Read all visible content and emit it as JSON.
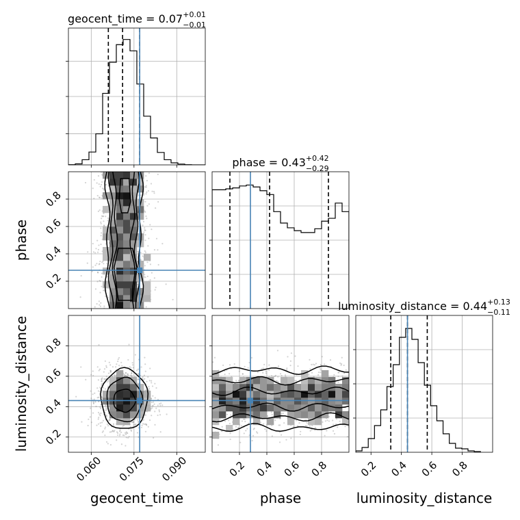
{
  "chart_data": {
    "type": "corner",
    "parameters": [
      {
        "key": "geocent_time",
        "axis_label": "geocent_time",
        "title_main": "geocent_time = 0.07",
        "title_sup": "+0.01",
        "title_sub": "−0.01",
        "range": [
          0.052,
          0.1
        ],
        "ticks": [
          0.06,
          0.075,
          0.09
        ],
        "tick_labels": [
          "0.060",
          "0.075",
          "0.090"
        ],
        "quantiles": [
          0.066,
          0.071,
          0.077
        ],
        "truth": 0.077
      },
      {
        "key": "phase",
        "axis_label": "phase",
        "title_main": "phase = 0.43",
        "title_sup": "+0.42",
        "title_sub": "−0.29",
        "range": [
          0.0,
          1.0
        ],
        "ticks": [
          0.2,
          0.4,
          0.6,
          0.8
        ],
        "tick_labels": [
          "0.2",
          "0.4",
          "0.6",
          "0.8"
        ],
        "quantiles": [
          0.13,
          0.42,
          0.85
        ],
        "truth": 0.28
      },
      {
        "key": "luminosity_distance",
        "axis_label": "luminosity_distance",
        "title_main": "luminosity_distance = 0.44",
        "title_sup": "+0.13",
        "title_sub": "−0.11",
        "range": [
          0.1,
          1.0
        ],
        "ticks": [
          0.2,
          0.4,
          0.6,
          0.8
        ],
        "tick_labels": [
          "0.2",
          "0.4",
          "0.6",
          "0.8"
        ],
        "quantiles": [
          0.33,
          0.44,
          0.57
        ],
        "truth": 0.44
      }
    ],
    "histograms": [
      {
        "param": "geocent_time",
        "edges": [
          0.052,
          0.0544,
          0.0568,
          0.0592,
          0.0616,
          0.064,
          0.0664,
          0.0688,
          0.0712,
          0.0736,
          0.076,
          0.0784,
          0.0808,
          0.0832,
          0.0856,
          0.088,
          0.0904,
          0.0928,
          0.0952,
          0.0976,
          0.1
        ],
        "counts": [
          0.1,
          0.5,
          2.5,
          6.2,
          15.0,
          34.5,
          49.5,
          58.0,
          60.5,
          55.0,
          39.0,
          23.5,
          13.0,
          6.0,
          2.5,
          1.0,
          0.4,
          0.1,
          0,
          0
        ],
        "ylim": [
          0,
          66
        ],
        "ticks": [
          15,
          33,
          50
        ]
      },
      {
        "param": "phase",
        "edges": [
          0.0,
          0.05,
          0.1,
          0.15,
          0.2,
          0.25,
          0.3,
          0.35,
          0.4,
          0.45,
          0.5,
          0.55,
          0.6,
          0.65,
          0.7,
          0.75,
          0.8,
          0.85,
          0.9,
          0.95,
          1.0
        ],
        "counts": [
          62.5,
          62.5,
          63.0,
          63.5,
          64.5,
          65.0,
          64.0,
          62.0,
          60.0,
          51.0,
          45.0,
          42.5,
          41.0,
          40.0,
          40.0,
          42.0,
          46.0,
          47.5,
          55.5,
          51.0
        ],
        "ylim": [
          0,
          72
        ],
        "ticks": [
          18,
          36,
          54
        ]
      },
      {
        "param": "luminosity_distance",
        "edges": [
          0.1,
          0.141,
          0.182,
          0.223,
          0.264,
          0.305,
          0.346,
          0.387,
          0.428,
          0.469,
          0.51,
          0.551,
          0.592,
          0.633,
          0.674,
          0.715,
          0.756,
          0.797,
          0.838,
          0.879,
          0.92
        ],
        "counts": [
          0.2,
          0.7,
          2.0,
          3.9,
          6.2,
          9.6,
          12.8,
          16.8,
          18.1,
          16.5,
          13.1,
          9.8,
          6.8,
          4.6,
          2.7,
          1.3,
          0.6,
          0.5,
          0.2,
          0.1
        ],
        "ylim": [
          0,
          20
        ],
        "ticks": [
          5,
          10,
          15
        ]
      }
    ],
    "contours": [
      {
        "x": "geocent_time",
        "y": "phase",
        "levels": [
          {
            "type": "band",
            "center": 0.0715,
            "half_widths": [
              0.0058,
              0.0045,
              0.0031
            ]
          },
          {
            "type": "loop",
            "points": [
              [
                0.0695,
                0.44
              ],
              [
                0.0745,
                0.44
              ],
              [
                0.076,
                0.3
              ],
              [
                0.0745,
                0.06
              ],
              [
                0.0695,
                0.06
              ],
              [
                0.068,
                0.3
              ]
            ]
          },
          {
            "type": "loop",
            "points": [
              [
                0.0703,
                0.95
              ],
              [
                0.0733,
                0.95
              ],
              [
                0.0738,
                0.78
              ],
              [
                0.0728,
                0.7
              ],
              [
                0.0706,
                0.7
              ],
              [
                0.0698,
                0.8
              ]
            ]
          }
        ]
      },
      {
        "x": "geocent_time",
        "y": "luminosity_distance",
        "levels": [
          {
            "type": "ellipse",
            "cx": 0.0716,
            "cy": 0.45,
            "rx": 0.0082,
            "ry": 0.2
          },
          {
            "type": "ellipse",
            "cx": 0.0716,
            "cy": 0.445,
            "rx": 0.0062,
            "ry": 0.145
          },
          {
            "type": "ellipse",
            "cx": 0.0716,
            "cy": 0.44,
            "rx": 0.0038,
            "ry": 0.075
          }
        ]
      },
      {
        "x": "phase",
        "y": "luminosity_distance",
        "levels": [
          {
            "type": "band_h",
            "center": 0.45,
            "half_heights": [
              0.19,
              0.12,
              0.05
            ]
          }
        ]
      }
    ],
    "scatter": [
      {
        "x": "geocent_time",
        "y": "phase",
        "x_range": [
          0.058,
          0.086
        ],
        "y_range": [
          0.0,
          1.0
        ]
      },
      {
        "x": "geocent_time",
        "y": "luminosity_distance",
        "x_range": [
          0.058,
          0.087
        ],
        "y_range": [
          0.15,
          0.85
        ]
      },
      {
        "x": "phase",
        "y": "luminosity_distance",
        "x_range": [
          0.0,
          1.0
        ],
        "y_range": [
          0.15,
          0.9
        ]
      }
    ],
    "colors": {
      "truth": "#4682b4",
      "contour": "#000000",
      "scatter": "#808080",
      "grid": "#b0b0b0"
    }
  }
}
